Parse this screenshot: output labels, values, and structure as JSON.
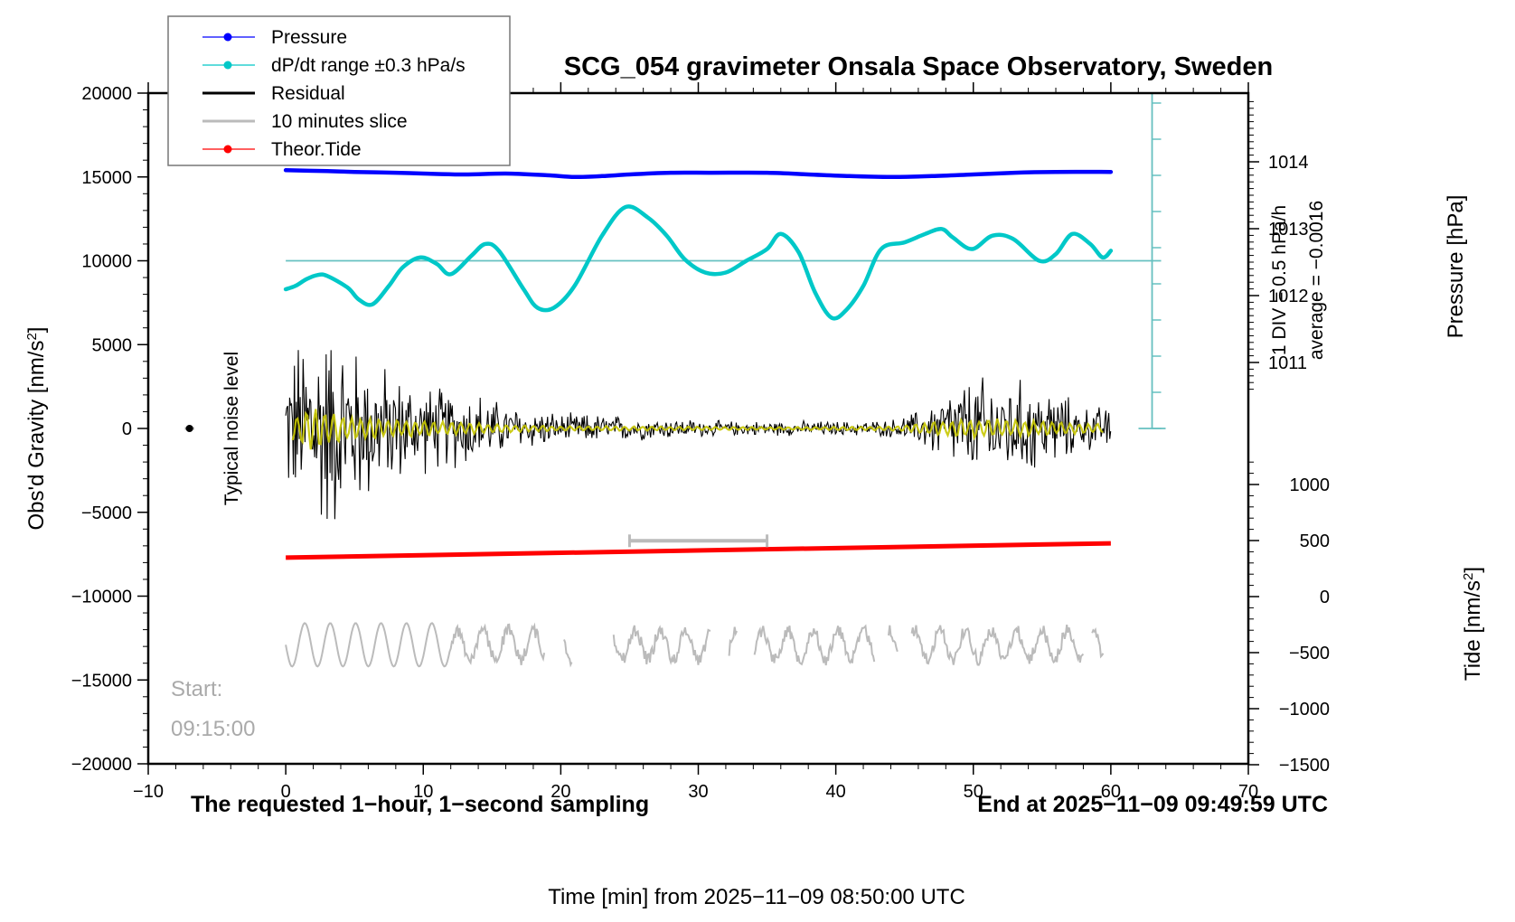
{
  "chart_data": {
    "type": "line",
    "title": "SCG_054 gravimeter Onsala Space Observatory, Sweden",
    "xlabel": "Time [min] from 2025−11−09 08:50:00 UTC",
    "ylabel": "Obs'd Gravity [nm/s²]",
    "ylabel_parts": {
      "main": "Obs'd Gravity [nm/s",
      "sup": "2",
      "end": "]"
    },
    "xlim": [
      -10,
      70
    ],
    "ylim": [
      -20000,
      20000
    ],
    "x_ticks": [
      -10,
      0,
      10,
      20,
      30,
      40,
      50,
      60,
      70
    ],
    "x_tick_labels": [
      "−10",
      "0",
      "10",
      "20",
      "30",
      "40",
      "50",
      "60",
      "70"
    ],
    "y_ticks": [
      20000,
      15000,
      10000,
      5000,
      0,
      -5000,
      -10000,
      -15000,
      -20000
    ],
    "y_tick_labels": [
      "20000",
      "15000",
      "10000",
      "5000",
      "0",
      "−5000",
      "−10000",
      "−15000",
      "−20000"
    ],
    "right_axis_pressure": {
      "label": "Pressure [hPa]",
      "ticks": [
        1014,
        1013,
        1012,
        1011
      ],
      "tick_labels": [
        "1014",
        "1013",
        "1012",
        "1011"
      ],
      "range": [
        1010.0,
        1015.0
      ]
    },
    "right_axis_tide": {
      "label_parts": {
        "main": "Tide [nm/s",
        "sup": "2",
        "end": "]"
      },
      "ticks": [
        1000,
        500,
        0,
        -500,
        -1000,
        -1500
      ],
      "tick_labels": [
        "1000",
        "500",
        "0",
        "−500",
        "−1000",
        "−1500"
      ],
      "range": [
        -1500,
        1500
      ]
    },
    "legend": {
      "position": "top-left",
      "entries": [
        {
          "label": "Pressure",
          "color": "#0000ff",
          "marker": "dot"
        },
        {
          "label": "dP/dt range ±0.3 hPa/s",
          "color": "#00c8c8",
          "marker": "dot"
        },
        {
          "label": "Residual",
          "color": "#000000",
          "marker": "line"
        },
        {
          "label": "10 minutes slice",
          "color": "#bbbbbb",
          "marker": "line"
        },
        {
          "label": "Theor.Tide",
          "color": "#ff0000",
          "marker": "dot"
        }
      ]
    },
    "series": [
      {
        "name": "Pressure",
        "units": "nm/s² (plot units)",
        "color": "#0000ff",
        "x": [
          0,
          3,
          5,
          8,
          10,
          13,
          16,
          19,
          21,
          23,
          25,
          28,
          31,
          35,
          38,
          41,
          44,
          47,
          50,
          53,
          56,
          60
        ],
        "values": [
          15400,
          15350,
          15300,
          15250,
          15200,
          15150,
          15200,
          15100,
          15000,
          15050,
          15150,
          15250,
          15250,
          15250,
          15150,
          15050,
          15000,
          15050,
          15150,
          15250,
          15300,
          15300
        ]
      },
      {
        "name": "dP/dt",
        "units": "nm/s² (plot units)",
        "color": "#00c8c8",
        "x": [
          0,
          0.7,
          1.5,
          2.3,
          3,
          4.5,
          5.3,
          6.3,
          7.5,
          8.5,
          9.8,
          11,
          12,
          13.5,
          14.5,
          15.5,
          17.3,
          18.3,
          19.5,
          21,
          23,
          24.7,
          26.3,
          27.7,
          29,
          30.5,
          32,
          33.5,
          35,
          36,
          37.3,
          38.5,
          39.7,
          40.8,
          42,
          43.3,
          45,
          46.5,
          47.7,
          48.5,
          49.9,
          51.4,
          52.9,
          54.8,
          56,
          57.2,
          58.5,
          59.4,
          60
        ],
        "values": [
          8300,
          8500,
          8900,
          9150,
          9100,
          8400,
          7700,
          7400,
          8500,
          9600,
          10200,
          9800,
          9200,
          10300,
          11000,
          10600,
          8300,
          7200,
          7200,
          8500,
          11500,
          13200,
          12600,
          11500,
          10100,
          9300,
          9300,
          10000,
          10700,
          11600,
          10500,
          8100,
          6600,
          7100,
          8500,
          10700,
          11100,
          11600,
          11900,
          11400,
          10700,
          11500,
          11300,
          10000,
          10400,
          11600,
          11000,
          10200,
          10600
        ]
      },
      {
        "name": "dP/dt baseline",
        "color": "#66c0c0",
        "x": [
          0,
          63
        ],
        "values": [
          10000,
          10000
        ]
      },
      {
        "name": "Residual",
        "color": "#000000",
        "envelope_x": [
          0,
          2,
          4,
          6,
          8,
          10,
          12,
          14,
          16,
          18,
          20,
          22,
          24,
          26,
          28,
          30,
          32,
          34,
          36,
          38,
          40,
          42,
          44,
          46,
          48,
          50,
          52,
          54,
          56,
          58,
          60
        ],
        "envelope_amplitude": [
          4500,
          8000,
          6500,
          5000,
          3800,
          3000,
          2800,
          2600,
          1600,
          1400,
          1000,
          1000,
          900,
          800,
          700,
          600,
          500,
          500,
          500,
          500,
          500,
          500,
          600,
          1200,
          2600,
          3500,
          3500,
          3200,
          2600,
          1500,
          1500
        ]
      },
      {
        "name": "10 minutes slice (filtered)",
        "color": "#c8c800",
        "envelope_x": [
          0,
          2,
          4,
          6,
          8,
          10,
          12,
          14,
          16,
          18,
          20,
          22,
          24,
          26,
          28,
          30,
          32,
          34,
          36,
          38,
          40,
          42,
          44,
          46,
          48,
          50,
          52,
          54,
          56,
          58,
          60
        ],
        "envelope_amplitude": [
          600,
          1400,
          900,
          700,
          600,
          500,
          400,
          350,
          250,
          200,
          150,
          150,
          150,
          150,
          120,
          120,
          100,
          100,
          100,
          100,
          100,
          120,
          150,
          300,
          500,
          600,
          600,
          500,
          400,
          300,
          300
        ]
      },
      {
        "name": "Theor.Tide",
        "color": "#ff0000",
        "x": [
          0,
          60
        ],
        "values": [
          -7700,
          -6850
        ]
      },
      {
        "name": "Start slice trace",
        "color": "#bbbbbb",
        "center": -12900,
        "x_range": [
          0,
          59.5
        ]
      }
    ],
    "annotations": {
      "noise_level_label": "Typical noise level",
      "noise_level_point": {
        "x": -7,
        "y": 0
      },
      "slice_bar": {
        "x_from": 25,
        "x_to": 35,
        "y": -6700
      },
      "start_label": "Start:",
      "start_time": "09:15:00",
      "note_left": "The requested 1−hour, 1−second sampling",
      "note_right": "End at 2025−11−09 09:49:59 UTC",
      "div_scale": "1 DIV = 0.5 hPa/h",
      "average": "average = −0.0016"
    },
    "grid": false
  },
  "colors": {
    "pressure": "#0000ff",
    "dpdt": "#00c8c8",
    "dpdt_axis": "#66c0c0",
    "residual": "#000000",
    "slice": "#c8c800",
    "tide": "#ff0000",
    "grey": "#bbbbbb"
  }
}
